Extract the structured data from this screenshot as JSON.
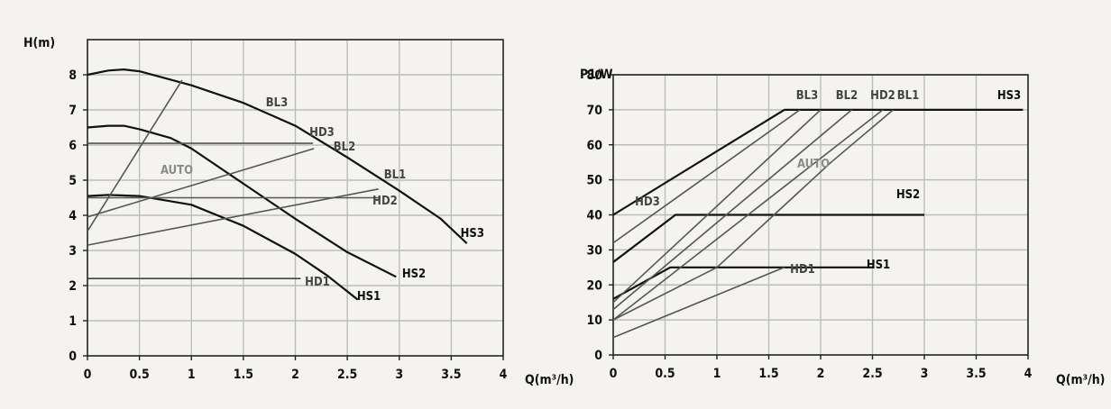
{
  "chart_data": [
    {
      "type": "line",
      "ylabel": "H(m)",
      "xlabel": "Q(m³/h)",
      "xlim": [
        0,
        4
      ],
      "ylim": [
        0,
        9
      ],
      "xticks": [
        "0",
        "0.5",
        "1",
        "1.5",
        "2",
        "2.5",
        "3",
        "3.5",
        "4"
      ],
      "yticks": [
        "0",
        "1",
        "2",
        "3",
        "4",
        "5",
        "6",
        "7",
        "8"
      ],
      "grid": true,
      "series": [
        {
          "name": "HS3",
          "color": "#111111",
          "points": [
            [
              0,
              8.0
            ],
            [
              0.2,
              8.12
            ],
            [
              0.35,
              8.15
            ],
            [
              0.5,
              8.1
            ],
            [
              1.0,
              7.7
            ],
            [
              1.5,
              7.2
            ],
            [
              2.0,
              6.55
            ],
            [
              2.5,
              5.65
            ],
            [
              3.0,
              4.7
            ],
            [
              3.4,
              3.9
            ],
            [
              3.65,
              3.2
            ]
          ]
        },
        {
          "name": "HS2",
          "color": "#111111",
          "points": [
            [
              0,
              6.5
            ],
            [
              0.2,
              6.55
            ],
            [
              0.35,
              6.55
            ],
            [
              0.5,
              6.45
            ],
            [
              0.8,
              6.2
            ],
            [
              1.0,
              5.9
            ],
            [
              1.5,
              4.9
            ],
            [
              2.0,
              3.9
            ],
            [
              2.5,
              2.95
            ],
            [
              2.97,
              2.25
            ]
          ]
        },
        {
          "name": "HS1",
          "color": "#111111",
          "points": [
            [
              0,
              4.55
            ],
            [
              0.2,
              4.58
            ],
            [
              0.5,
              4.55
            ],
            [
              1.0,
              4.3
            ],
            [
              1.5,
              3.7
            ],
            [
              2.0,
              2.9
            ],
            [
              2.3,
              2.3
            ],
            [
              2.6,
              1.6
            ]
          ]
        },
        {
          "name": "HD1",
          "color": "#444444",
          "points": [
            [
              0,
              2.2
            ],
            [
              2.05,
              2.2
            ]
          ]
        },
        {
          "name": "BL3",
          "color": "#555555",
          "points": [
            [
              0,
              3.55
            ],
            [
              0.91,
              7.85
            ]
          ]
        },
        {
          "name": "BL2",
          "color": "#555555",
          "points": [
            [
              0,
              3.95
            ],
            [
              2.18,
              5.9
            ]
          ]
        },
        {
          "name": "BL1",
          "color": "#555555",
          "points": [
            [
              0,
              3.15
            ],
            [
              2.8,
              4.75
            ]
          ]
        },
        {
          "name": "HD2",
          "color": "#555555",
          "points": [
            [
              0,
              4.5
            ],
            [
              2.82,
              4.5
            ]
          ]
        },
        {
          "name": "HD3",
          "color": "#555555",
          "points": [
            [
              0,
              6.05
            ],
            [
              2.17,
              6.05
            ]
          ]
        },
        {
          "name": "AUTO",
          "color": "#777777",
          "points": []
        }
      ]
    },
    {
      "type": "line",
      "ylabel": "P1/W",
      "xlabel": "Q(m³/h)",
      "xlim": [
        0,
        4
      ],
      "ylim": [
        0,
        80
      ],
      "xticks": [
        "0",
        "0.5",
        "1",
        "1.5",
        "2",
        "2.5",
        "3",
        "3.5",
        "4"
      ],
      "yticks": [
        "0",
        "10",
        "20",
        "30",
        "40",
        "50",
        "60",
        "70",
        "80"
      ],
      "grid": true,
      "series": [
        {
          "name": "HS3",
          "color": "#111111",
          "points": [
            [
              0,
              40
            ],
            [
              1.65,
              70
            ],
            [
              3.95,
              70
            ]
          ]
        },
        {
          "name": "HS2",
          "color": "#111111",
          "points": [
            [
              0,
              26.5
            ],
            [
              0.6,
              40
            ],
            [
              3.0,
              40
            ]
          ]
        },
        {
          "name": "HS1",
          "color": "#111111",
          "points": [
            [
              0,
              16
            ],
            [
              0.55,
              25
            ],
            [
              2.5,
              25
            ]
          ]
        },
        {
          "name": "HD3",
          "color": "#555555",
          "points": [
            [
              0,
              32
            ],
            [
              1.8,
              70
            ]
          ]
        },
        {
          "name": "HD2",
          "color": "#555555",
          "points": [
            [
              0,
              10
            ],
            [
              2.6,
              70
            ]
          ]
        },
        {
          "name": "HD1",
          "color": "#555555",
          "points": [
            [
              0,
              5
            ],
            [
              1.65,
              25
            ]
          ]
        },
        {
          "name": "BL3",
          "color": "#555555",
          "points": [
            [
              0,
              15
            ],
            [
              2.0,
              70
            ]
          ]
        },
        {
          "name": "BL2",
          "color": "#555555",
          "points": [
            [
              0,
              13
            ],
            [
              2.3,
              70
            ]
          ]
        },
        {
          "name": "BL1",
          "color": "#555555",
          "points": [
            [
              0,
              10
            ],
            [
              1.0,
              25
            ],
            [
              1.55,
              40
            ],
            [
              2.1,
              55
            ],
            [
              2.7,
              70
            ]
          ]
        },
        {
          "name": "AUTO",
          "color": "#777777",
          "points": []
        }
      ]
    }
  ]
}
